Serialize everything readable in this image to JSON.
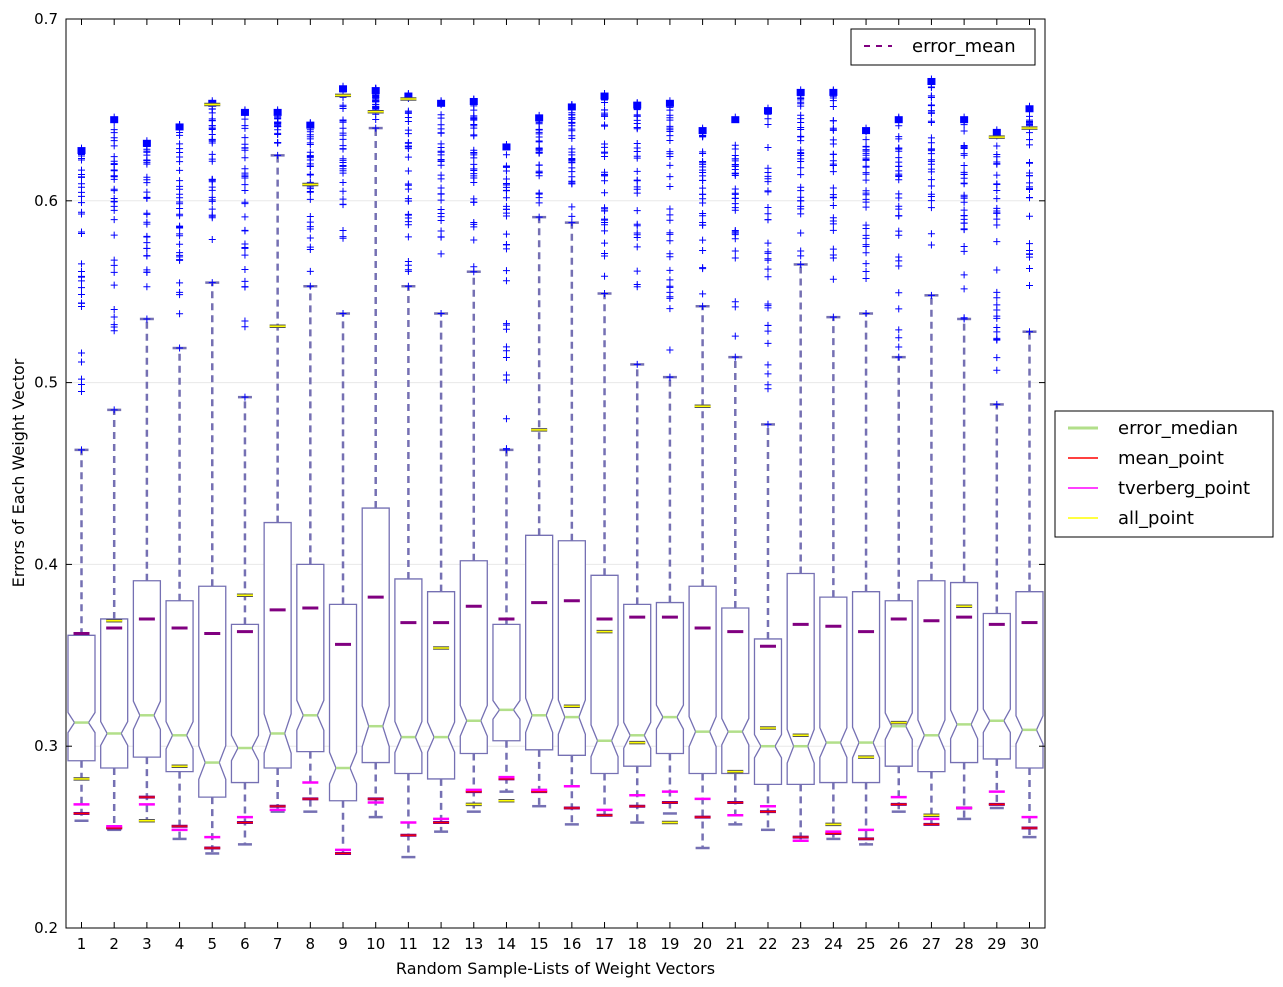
{
  "chart_data": {
    "type": "box",
    "title": "",
    "xlabel": "Random Sample-Lists of Weight Vectors",
    "ylabel": "Errors of Each Weight Vector",
    "ylim": [
      0.2,
      0.7
    ],
    "yticks": [
      "0.2",
      "0.3",
      "0.4",
      "0.5",
      "0.6",
      "0.7"
    ],
    "grid": "horizontal",
    "categories": [
      "1",
      "2",
      "3",
      "4",
      "5",
      "6",
      "7",
      "8",
      "9",
      "10",
      "11",
      "12",
      "13",
      "14",
      "15",
      "16",
      "17",
      "18",
      "19",
      "20",
      "21",
      "22",
      "23",
      "24",
      "25",
      "26",
      "27",
      "28",
      "29",
      "30"
    ],
    "legend_upper": {
      "placement": "top-right",
      "entries": [
        {
          "label": "error_mean",
          "color": "#800080",
          "style": "dashed"
        }
      ]
    },
    "legend_side": {
      "placement": "center-right-outside",
      "entries": [
        {
          "label": "error_median",
          "color": "#b2df8a",
          "style": "solid"
        },
        {
          "label": "mean_point",
          "color": "#ff0000",
          "style": "solid"
        },
        {
          "label": "tverberg_point",
          "color": "#ff00ff",
          "style": "solid"
        },
        {
          "label": "all_point",
          "color": "#ffff00",
          "style": "solid"
        }
      ]
    },
    "colors": {
      "box": "#7570b3",
      "whisker": "#7570b3",
      "flier": "#0000ff",
      "median": "#b2df8a",
      "error_mean": "#800080",
      "mean_point": "#ff0000",
      "tverberg_point": "#ff00ff",
      "all_point": "#ffff00"
    },
    "series": [
      {
        "q1": 0.292,
        "median": 0.313,
        "q3": 0.361,
        "wlow": 0.259,
        "whigh": 0.463,
        "flier_min": 0.463,
        "flier_max": 0.629,
        "error_mean": 0.362,
        "mean_point": 0.263,
        "tverberg_point": 0.268,
        "all_point": 0.282
      },
      {
        "q1": 0.288,
        "median": 0.307,
        "q3": 0.37,
        "wlow": 0.254,
        "whigh": 0.485,
        "flier_min": 0.485,
        "flier_max": 0.646,
        "error_mean": 0.365,
        "mean_point": 0.255,
        "tverberg_point": 0.256,
        "all_point": 0.369
      },
      {
        "q1": 0.294,
        "median": 0.317,
        "q3": 0.391,
        "wlow": 0.259,
        "whigh": 0.535,
        "flier_min": 0.535,
        "flier_max": 0.633,
        "error_mean": 0.37,
        "mean_point": 0.272,
        "tverberg_point": 0.268,
        "all_point": 0.259
      },
      {
        "q1": 0.286,
        "median": 0.306,
        "q3": 0.38,
        "wlow": 0.249,
        "whigh": 0.519,
        "flier_min": 0.519,
        "flier_max": 0.642,
        "error_mean": 0.365,
        "mean_point": 0.256,
        "tverberg_point": 0.254,
        "all_point": 0.289
      },
      {
        "q1": 0.272,
        "median": 0.291,
        "q3": 0.388,
        "wlow": 0.241,
        "whigh": 0.555,
        "flier_min": 0.555,
        "flier_max": 0.655,
        "error_mean": 0.362,
        "mean_point": 0.244,
        "tverberg_point": 0.25,
        "all_point": 0.653
      },
      {
        "q1": 0.28,
        "median": 0.299,
        "q3": 0.367,
        "wlow": 0.246,
        "whigh": 0.492,
        "flier_min": 0.492,
        "flier_max": 0.65,
        "error_mean": 0.363,
        "mean_point": 0.258,
        "tverberg_point": 0.261,
        "all_point": 0.383
      },
      {
        "q1": 0.288,
        "median": 0.307,
        "q3": 0.423,
        "wlow": 0.264,
        "whigh": 0.625,
        "flier_min": 0.625,
        "flier_max": 0.65,
        "error_mean": 0.375,
        "mean_point": 0.267,
        "tverberg_point": 0.265,
        "all_point": 0.531
      },
      {
        "q1": 0.297,
        "median": 0.317,
        "q3": 0.4,
        "wlow": 0.264,
        "whigh": 0.553,
        "flier_min": 0.553,
        "flier_max": 0.643,
        "error_mean": 0.376,
        "mean_point": 0.271,
        "tverberg_point": 0.28,
        "all_point": 0.609
      },
      {
        "q1": 0.27,
        "median": 0.288,
        "q3": 0.378,
        "wlow": 0.241,
        "whigh": 0.538,
        "flier_min": 0.538,
        "flier_max": 0.663,
        "error_mean": 0.356,
        "mean_point": 0.241,
        "tverberg_point": 0.243,
        "all_point": 0.658
      },
      {
        "q1": 0.291,
        "median": 0.311,
        "q3": 0.431,
        "wlow": 0.261,
        "whigh": 0.64,
        "flier_min": 0.64,
        "flier_max": 0.662,
        "error_mean": 0.382,
        "mean_point": 0.271,
        "tverberg_point": 0.269,
        "all_point": 0.649
      },
      {
        "q1": 0.285,
        "median": 0.305,
        "q3": 0.392,
        "wlow": 0.239,
        "whigh": 0.553,
        "flier_min": 0.553,
        "flier_max": 0.659,
        "error_mean": 0.368,
        "mean_point": 0.251,
        "tverberg_point": 0.258,
        "all_point": 0.656
      },
      {
        "q1": 0.282,
        "median": 0.305,
        "q3": 0.385,
        "wlow": 0.253,
        "whigh": 0.538,
        "flier_min": 0.538,
        "flier_max": 0.655,
        "error_mean": 0.368,
        "mean_point": 0.258,
        "tverberg_point": 0.26,
        "all_point": 0.354
      },
      {
        "q1": 0.296,
        "median": 0.314,
        "q3": 0.402,
        "wlow": 0.264,
        "whigh": 0.561,
        "flier_min": 0.561,
        "flier_max": 0.656,
        "error_mean": 0.377,
        "mean_point": 0.275,
        "tverberg_point": 0.276,
        "all_point": 0.268
      },
      {
        "q1": 0.303,
        "median": 0.32,
        "q3": 0.367,
        "wlow": 0.275,
        "whigh": 0.463,
        "flier_min": 0.463,
        "flier_max": 0.631,
        "error_mean": 0.37,
        "mean_point": 0.282,
        "tverberg_point": 0.283,
        "all_point": 0.27
      },
      {
        "q1": 0.298,
        "median": 0.317,
        "q3": 0.416,
        "wlow": 0.267,
        "whigh": 0.591,
        "flier_min": 0.591,
        "flier_max": 0.647,
        "error_mean": 0.379,
        "mean_point": 0.275,
        "tverberg_point": 0.276,
        "all_point": 0.474
      },
      {
        "q1": 0.295,
        "median": 0.316,
        "q3": 0.413,
        "wlow": 0.257,
        "whigh": 0.588,
        "flier_min": 0.588,
        "flier_max": 0.653,
        "error_mean": 0.38,
        "mean_point": 0.266,
        "tverberg_point": 0.278,
        "all_point": 0.322
      },
      {
        "q1": 0.285,
        "median": 0.303,
        "q3": 0.394,
        "wlow": 0.262,
        "whigh": 0.549,
        "flier_min": 0.549,
        "flier_max": 0.659,
        "error_mean": 0.37,
        "mean_point": 0.262,
        "tverberg_point": 0.265,
        "all_point": 0.363
      },
      {
        "q1": 0.289,
        "median": 0.306,
        "q3": 0.378,
        "wlow": 0.258,
        "whigh": 0.51,
        "flier_min": 0.51,
        "flier_max": 0.654,
        "error_mean": 0.371,
        "mean_point": 0.267,
        "tverberg_point": 0.273,
        "all_point": 0.302
      },
      {
        "q1": 0.296,
        "median": 0.316,
        "q3": 0.379,
        "wlow": 0.263,
        "whigh": 0.503,
        "flier_min": 0.503,
        "flier_max": 0.655,
        "error_mean": 0.371,
        "mean_point": 0.269,
        "tverberg_point": 0.275,
        "all_point": 0.258
      },
      {
        "q1": 0.285,
        "median": 0.308,
        "q3": 0.388,
        "wlow": 0.244,
        "whigh": 0.542,
        "flier_min": 0.542,
        "flier_max": 0.64,
        "error_mean": 0.365,
        "mean_point": 0.261,
        "tverberg_point": 0.271,
        "all_point": 0.487
      },
      {
        "q1": 0.285,
        "median": 0.308,
        "q3": 0.376,
        "wlow": 0.257,
        "whigh": 0.514,
        "flier_min": 0.514,
        "flier_max": 0.646,
        "error_mean": 0.363,
        "mean_point": 0.269,
        "tverberg_point": 0.262,
        "all_point": 0.286
      },
      {
        "q1": 0.279,
        "median": 0.3,
        "q3": 0.359,
        "wlow": 0.254,
        "whigh": 0.477,
        "flier_min": 0.477,
        "flier_max": 0.651,
        "error_mean": 0.355,
        "mean_point": 0.264,
        "tverberg_point": 0.267,
        "all_point": 0.31
      },
      {
        "q1": 0.279,
        "median": 0.3,
        "q3": 0.395,
        "wlow": 0.248,
        "whigh": 0.565,
        "flier_min": 0.565,
        "flier_max": 0.661,
        "error_mean": 0.367,
        "mean_point": 0.25,
        "tverberg_point": 0.248,
        "all_point": 0.306
      },
      {
        "q1": 0.28,
        "median": 0.302,
        "q3": 0.382,
        "wlow": 0.249,
        "whigh": 0.536,
        "flier_min": 0.536,
        "flier_max": 0.661,
        "error_mean": 0.366,
        "mean_point": 0.252,
        "tverberg_point": 0.253,
        "all_point": 0.257
      },
      {
        "q1": 0.28,
        "median": 0.302,
        "q3": 0.385,
        "wlow": 0.246,
        "whigh": 0.538,
        "flier_min": 0.538,
        "flier_max": 0.64,
        "error_mean": 0.363,
        "mean_point": 0.249,
        "tverberg_point": 0.254,
        "all_point": 0.294
      },
      {
        "q1": 0.289,
        "median": 0.311,
        "q3": 0.38,
        "wlow": 0.264,
        "whigh": 0.514,
        "flier_min": 0.514,
        "flier_max": 0.646,
        "error_mean": 0.37,
        "mean_point": 0.268,
        "tverberg_point": 0.272,
        "all_point": 0.313
      },
      {
        "q1": 0.286,
        "median": 0.306,
        "q3": 0.391,
        "wlow": 0.257,
        "whigh": 0.548,
        "flier_min": 0.548,
        "flier_max": 0.667,
        "error_mean": 0.369,
        "mean_point": 0.257,
        "tverberg_point": 0.26,
        "all_point": 0.262
      },
      {
        "q1": 0.291,
        "median": 0.312,
        "q3": 0.39,
        "wlow": 0.26,
        "whigh": 0.535,
        "flier_min": 0.535,
        "flier_max": 0.646,
        "error_mean": 0.371,
        "mean_point": 0.266,
        "tverberg_point": 0.266,
        "all_point": 0.377
      },
      {
        "q1": 0.293,
        "median": 0.314,
        "q3": 0.373,
        "wlow": 0.266,
        "whigh": 0.488,
        "flier_min": 0.488,
        "flier_max": 0.639,
        "error_mean": 0.367,
        "mean_point": 0.268,
        "tverberg_point": 0.275,
        "all_point": 0.635
      },
      {
        "q1": 0.288,
        "median": 0.309,
        "q3": 0.385,
        "wlow": 0.25,
        "whigh": 0.528,
        "flier_min": 0.528,
        "flier_max": 0.652,
        "error_mean": 0.368,
        "mean_point": 0.255,
        "tverberg_point": 0.261,
        "all_point": 0.64
      }
    ]
  }
}
